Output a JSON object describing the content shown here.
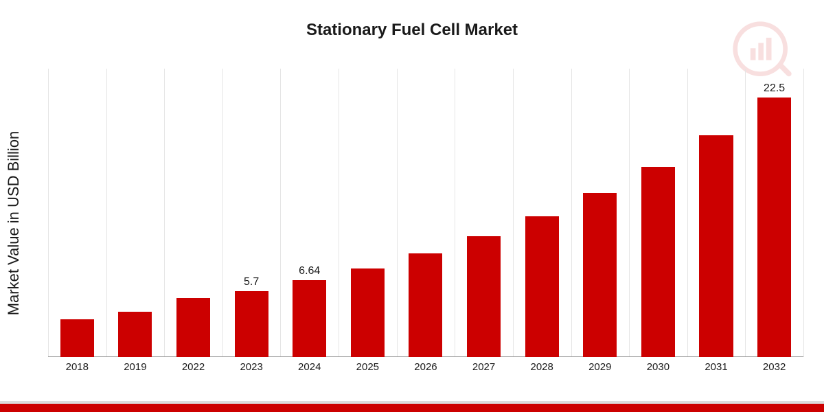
{
  "chart": {
    "type": "bar",
    "title": "Stationary Fuel Cell Market",
    "title_fontsize": 24,
    "ylabel": "Market Value in USD Billion",
    "ylabel_fontsize": 22,
    "background_color": "#ffffff",
    "bar_color": "#cc0000",
    "grid_color": "#e5e5e5",
    "baseline_color": "#999999",
    "text_color": "#1a1a1a",
    "ylim": [
      0,
      25
    ],
    "bar_width_ratio": 0.58,
    "font_family": "Arial",
    "categories": [
      "2018",
      "2019",
      "2022",
      "2023",
      "2024",
      "2025",
      "2026",
      "2027",
      "2028",
      "2029",
      "2030",
      "2031",
      "2032"
    ],
    "values": [
      3.3,
      3.9,
      5.1,
      5.7,
      6.64,
      7.7,
      9.0,
      10.5,
      12.2,
      14.2,
      16.5,
      19.2,
      22.5
    ],
    "value_labels": [
      "",
      "",
      "",
      "5.7",
      "6.64",
      "",
      "",
      "",
      "",
      "",
      "",
      "",
      "22.5"
    ],
    "category_boundaries_pct": [
      0,
      7.69,
      15.38,
      23.08,
      30.77,
      38.46,
      46.15,
      53.85,
      61.54,
      69.23,
      76.92,
      84.62,
      92.31,
      100
    ]
  },
  "watermark": {
    "ring_color": "#e9c8c9",
    "bar_color": "#e9c8c9",
    "handle_color": "#e9c8c9"
  },
  "footer": {
    "stripe_color": "#cc0000",
    "stripe_border": "#dcdcdc"
  }
}
